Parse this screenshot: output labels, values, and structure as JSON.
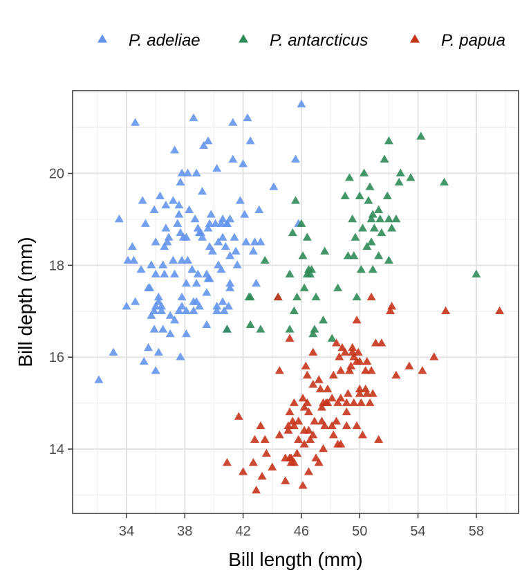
{
  "chart_data": {
    "type": "scatter",
    "title": "",
    "xlabel": "Bill length (mm)",
    "ylabel": "Bill depth (mm)",
    "xlim": [
      30.3,
      60.9
    ],
    "ylim": [
      12.6,
      21.8
    ],
    "x_ticks": [
      34,
      38,
      42,
      46,
      50,
      54,
      58
    ],
    "y_ticks": [
      14,
      16,
      18,
      20
    ],
    "grid": true,
    "marker": "triangle",
    "legend_position": "top",
    "series": [
      {
        "name": "P. adeliae",
        "color": "#6495ED",
        "points": [
          [
            32.1,
            15.5
          ],
          [
            33.1,
            16.1
          ],
          [
            33.5,
            19.0
          ],
          [
            34.0,
            17.1
          ],
          [
            34.1,
            18.1
          ],
          [
            34.4,
            18.4
          ],
          [
            34.5,
            18.1
          ],
          [
            34.6,
            21.1
          ],
          [
            34.6,
            17.2
          ],
          [
            35.0,
            17.9
          ],
          [
            35.1,
            19.4
          ],
          [
            35.2,
            15.9
          ],
          [
            35.3,
            18.9
          ],
          [
            35.5,
            16.2
          ],
          [
            35.5,
            17.5
          ],
          [
            35.6,
            17.5
          ],
          [
            35.7,
            16.9
          ],
          [
            35.7,
            18.0
          ],
          [
            35.9,
            19.2
          ],
          [
            35.9,
            16.6
          ],
          [
            35.9,
            17.0
          ],
          [
            36.0,
            15.7
          ],
          [
            36.0,
            17.1
          ],
          [
            36.0,
            17.8
          ],
          [
            36.0,
            18.5
          ],
          [
            36.2,
            16.1
          ],
          [
            36.2,
            17.2
          ],
          [
            36.2,
            17.3
          ],
          [
            36.3,
            19.5
          ],
          [
            36.4,
            17.0
          ],
          [
            36.4,
            17.1
          ],
          [
            36.5,
            16.6
          ],
          [
            36.5,
            18.0
          ],
          [
            36.6,
            17.8
          ],
          [
            36.6,
            18.4
          ],
          [
            36.7,
            19.3
          ],
          [
            36.7,
            18.8
          ],
          [
            36.8,
            18.5
          ],
          [
            36.9,
            18.6
          ],
          [
            37.0,
            16.9
          ],
          [
            37.0,
            16.5
          ],
          [
            37.2,
            18.1
          ],
          [
            37.2,
            19.4
          ],
          [
            37.3,
            20.5
          ],
          [
            37.3,
            17.8
          ],
          [
            37.3,
            16.8
          ],
          [
            37.5,
            18.9
          ],
          [
            37.6,
            19.1
          ],
          [
            37.6,
            17.0
          ],
          [
            37.6,
            19.3
          ],
          [
            37.7,
            18.7
          ],
          [
            37.7,
            16.0
          ],
          [
            37.7,
            19.8
          ],
          [
            37.8,
            17.1
          ],
          [
            37.8,
            18.1
          ],
          [
            37.8,
            17.3
          ],
          [
            37.8,
            20.0
          ],
          [
            37.9,
            18.6
          ],
          [
            38.1,
            18.6
          ],
          [
            38.1,
            17.0
          ],
          [
            38.1,
            16.5
          ],
          [
            38.1,
            17.6
          ],
          [
            38.2,
            18.1
          ],
          [
            38.2,
            20.0
          ],
          [
            38.3,
            19.2
          ],
          [
            38.5,
            17.9
          ],
          [
            38.6,
            21.2
          ],
          [
            38.6,
            17.2
          ],
          [
            38.6,
            17.0
          ],
          [
            38.7,
            19.0
          ],
          [
            38.8,
            17.2
          ],
          [
            38.8,
            20.0
          ],
          [
            38.8,
            17.6
          ],
          [
            38.9,
            17.8
          ],
          [
            38.9,
            18.8
          ],
          [
            39.0,
            17.1
          ],
          [
            39.0,
            18.7
          ],
          [
            39.1,
            18.7
          ],
          [
            39.2,
            19.6
          ],
          [
            39.2,
            18.6
          ],
          [
            39.3,
            20.6
          ],
          [
            39.5,
            17.4
          ],
          [
            39.5,
            16.7
          ],
          [
            39.5,
            17.8
          ],
          [
            39.6,
            17.7
          ],
          [
            39.6,
            18.8
          ],
          [
            39.6,
            20.7
          ],
          [
            39.7,
            18.4
          ],
          [
            39.7,
            17.7
          ],
          [
            39.7,
            18.9
          ],
          [
            39.8,
            19.1
          ],
          [
            39.9,
            18.3
          ],
          [
            40.1,
            18.9
          ],
          [
            40.2,
            17.1
          ],
          [
            40.2,
            17.0
          ],
          [
            40.2,
            20.1
          ],
          [
            40.3,
            18.0
          ],
          [
            40.3,
            18.5
          ],
          [
            40.5,
            17.9
          ],
          [
            40.5,
            18.9
          ],
          [
            40.6,
            18.6
          ],
          [
            40.6,
            17.2
          ],
          [
            40.6,
            19.0
          ],
          [
            40.7,
            17.0
          ],
          [
            40.8,
            18.4
          ],
          [
            40.9,
            16.6
          ],
          [
            40.9,
            18.9
          ],
          [
            41.0,
            17.1
          ],
          [
            41.1,
            17.6
          ],
          [
            41.1,
            19.0
          ],
          [
            41.1,
            18.2
          ],
          [
            41.1,
            17.5
          ],
          [
            41.3,
            20.3
          ],
          [
            41.3,
            21.1
          ],
          [
            41.4,
            18.6
          ],
          [
            41.5,
            18.3
          ],
          [
            41.6,
            18.0
          ],
          [
            41.8,
            19.4
          ],
          [
            42.0,
            20.2
          ],
          [
            42.1,
            19.1
          ],
          [
            42.2,
            18.5
          ],
          [
            42.3,
            21.2
          ],
          [
            42.5,
            20.7
          ],
          [
            42.7,
            18.3
          ],
          [
            42.8,
            18.5
          ],
          [
            42.9,
            17.6
          ],
          [
            43.1,
            19.2
          ],
          [
            43.2,
            18.5
          ],
          [
            44.1,
            19.7
          ],
          [
            45.6,
            20.3
          ],
          [
            45.8,
            18.9
          ],
          [
            46.0,
            21.5
          ],
          [
            40.9,
            18.9
          ]
        ]
      },
      {
        "name": "P. antarcticus",
        "color": "#2E8B57",
        "points": [
          [
            40.9,
            16.6
          ],
          [
            42.4,
            17.3
          ],
          [
            42.5,
            16.7
          ],
          [
            42.5,
            17.3
          ],
          [
            43.2,
            16.6
          ],
          [
            43.5,
            18.1
          ],
          [
            44.4,
            17.3
          ],
          [
            45.2,
            16.6
          ],
          [
            45.2,
            17.8
          ],
          [
            45.4,
            18.7
          ],
          [
            45.5,
            17.0
          ],
          [
            45.6,
            19.4
          ],
          [
            45.7,
            17.3
          ],
          [
            46.0,
            18.9
          ],
          [
            46.1,
            18.2
          ],
          [
            46.2,
            17.5
          ],
          [
            46.4,
            17.8
          ],
          [
            46.4,
            18.6
          ],
          [
            46.5,
            17.9
          ],
          [
            46.6,
            17.8
          ],
          [
            46.8,
            16.5
          ],
          [
            46.9,
            16.6
          ],
          [
            47.0,
            17.3
          ],
          [
            47.5,
            16.8
          ],
          [
            47.6,
            18.3
          ],
          [
            48.1,
            16.4
          ],
          [
            48.5,
            17.5
          ],
          [
            49.0,
            19.5
          ],
          [
            49.2,
            18.2
          ],
          [
            49.3,
            19.9
          ],
          [
            49.6,
            18.2
          ],
          [
            49.7,
            18.6
          ],
          [
            49.8,
            17.3
          ],
          [
            50.0,
            19.5
          ],
          [
            50.1,
            17.9
          ],
          [
            50.2,
            18.8
          ],
          [
            50.3,
            20.0
          ],
          [
            50.5,
            18.4
          ],
          [
            50.6,
            19.4
          ],
          [
            50.7,
            19.7
          ],
          [
            50.8,
            18.5
          ],
          [
            50.8,
            19.0
          ],
          [
            50.9,
            17.9
          ],
          [
            51.0,
            18.8
          ],
          [
            51.3,
            18.2
          ],
          [
            51.3,
            19.2
          ],
          [
            51.4,
            19.0
          ],
          [
            51.5,
            18.7
          ],
          [
            51.7,
            20.3
          ],
          [
            51.9,
            19.5
          ],
          [
            52.0,
            18.1
          ],
          [
            52.0,
            19.0
          ],
          [
            52.0,
            20.7
          ],
          [
            52.2,
            18.8
          ],
          [
            52.5,
            19.0
          ],
          [
            52.7,
            19.8
          ],
          [
            52.8,
            20.0
          ],
          [
            53.5,
            19.9
          ],
          [
            54.2,
            20.8
          ],
          [
            55.8,
            19.8
          ],
          [
            58.0,
            17.8
          ],
          [
            49.5,
            19.0
          ],
          [
            50.9,
            19.1
          ],
          [
            46.7,
            17.9
          ]
        ]
      },
      {
        "name": "P. papua",
        "color": "#C8341A",
        "points": [
          [
            40.9,
            13.7
          ],
          [
            41.7,
            14.7
          ],
          [
            42.0,
            13.5
          ],
          [
            42.7,
            13.7
          ],
          [
            42.8,
            14.2
          ],
          [
            42.9,
            13.1
          ],
          [
            43.2,
            14.5
          ],
          [
            43.3,
            13.4
          ],
          [
            43.5,
            14.2
          ],
          [
            43.6,
            13.9
          ],
          [
            44.0,
            13.6
          ],
          [
            44.4,
            17.3
          ],
          [
            44.5,
            14.3
          ],
          [
            44.5,
            15.7
          ],
          [
            44.9,
            13.8
          ],
          [
            44.9,
            13.3
          ],
          [
            45.1,
            14.5
          ],
          [
            45.1,
            14.4
          ],
          [
            45.2,
            13.8
          ],
          [
            45.2,
            14.8
          ],
          [
            45.2,
            16.4
          ],
          [
            45.3,
            13.7
          ],
          [
            45.3,
            13.8
          ],
          [
            45.4,
            14.6
          ],
          [
            45.5,
            13.7
          ],
          [
            45.5,
            15.0
          ],
          [
            45.7,
            13.9
          ],
          [
            45.8,
            14.2
          ],
          [
            45.8,
            14.6
          ],
          [
            46.1,
            15.1
          ],
          [
            46.2,
            14.1
          ],
          [
            46.2,
            14.4
          ],
          [
            46.2,
            14.9
          ],
          [
            46.3,
            15.8
          ],
          [
            46.4,
            15.0
          ],
          [
            46.4,
            15.6
          ],
          [
            46.5,
            14.4
          ],
          [
            46.5,
            14.8
          ],
          [
            46.5,
            13.5
          ],
          [
            46.6,
            14.2
          ],
          [
            46.8,
            15.4
          ],
          [
            46.8,
            14.3
          ],
          [
            46.8,
            16.1
          ],
          [
            46.9,
            14.6
          ],
          [
            47.0,
            13.8
          ],
          [
            47.2,
            13.7
          ],
          [
            47.2,
            15.5
          ],
          [
            47.3,
            15.3
          ],
          [
            47.4,
            14.6
          ],
          [
            47.5,
            14.0
          ],
          [
            47.5,
            15.0
          ],
          [
            47.6,
            14.5
          ],
          [
            47.7,
            15.0
          ],
          [
            47.8,
            15.0
          ],
          [
            48.1,
            15.1
          ],
          [
            48.2,
            14.3
          ],
          [
            48.2,
            15.6
          ],
          [
            48.4,
            14.6
          ],
          [
            48.4,
            16.3
          ],
          [
            48.5,
            14.1
          ],
          [
            48.5,
            15.0
          ],
          [
            48.6,
            16.0
          ],
          [
            48.7,
            14.1
          ],
          [
            48.7,
            15.1
          ],
          [
            48.7,
            15.7
          ],
          [
            48.8,
            16.2
          ],
          [
            49.0,
            16.1
          ],
          [
            49.1,
            14.5
          ],
          [
            49.1,
            14.8
          ],
          [
            49.1,
            15.0
          ],
          [
            49.2,
            15.2
          ],
          [
            49.3,
            15.7
          ],
          [
            49.4,
            15.8
          ],
          [
            49.5,
            16.1
          ],
          [
            49.5,
            16.2
          ],
          [
            49.6,
            15.0
          ],
          [
            49.6,
            16.0
          ],
          [
            49.8,
            15.9
          ],
          [
            49.8,
            16.8
          ],
          [
            49.9,
            16.1
          ],
          [
            50.0,
            15.2
          ],
          [
            50.0,
            15.3
          ],
          [
            50.0,
            15.9
          ],
          [
            50.1,
            15.0
          ],
          [
            50.2,
            14.3
          ],
          [
            50.4,
            15.3
          ],
          [
            50.4,
            15.7
          ],
          [
            50.5,
            15.2
          ],
          [
            50.5,
            15.9
          ],
          [
            50.7,
            15.0
          ],
          [
            50.8,
            15.7
          ],
          [
            50.8,
            17.3
          ],
          [
            51.1,
            16.3
          ],
          [
            51.3,
            14.2
          ],
          [
            51.5,
            16.3
          ],
          [
            52.1,
            17.0
          ],
          [
            52.2,
            17.1
          ],
          [
            52.5,
            15.6
          ],
          [
            53.4,
            15.8
          ],
          [
            54.3,
            15.7
          ],
          [
            55.1,
            16.0
          ],
          [
            55.9,
            17.0
          ],
          [
            59.6,
            17.0
          ],
          [
            45.5,
            14.5
          ],
          [
            47.4,
            14.9
          ],
          [
            46.1,
            13.2
          ],
          [
            48.1,
            14.5
          ],
          [
            49.8,
            14.5
          ],
          [
            50.9,
            15.2
          ],
          [
            47.8,
            15.3
          ]
        ]
      }
    ]
  }
}
